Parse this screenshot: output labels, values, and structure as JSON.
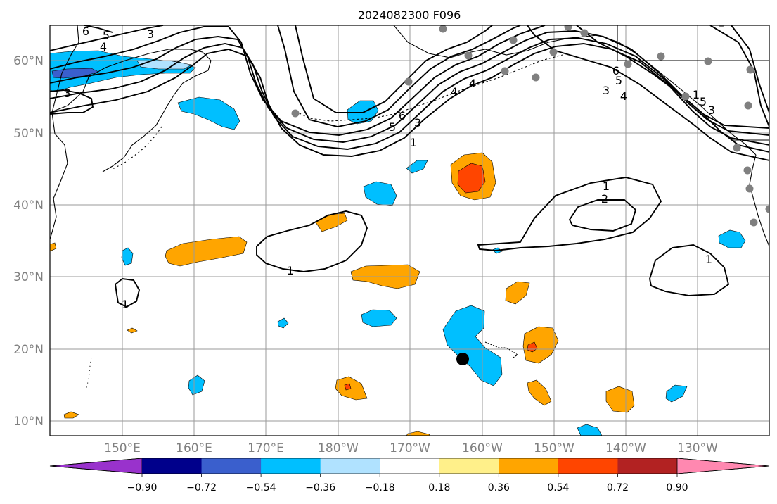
{
  "title": "2024082300 F096",
  "map": {
    "lon_ticks": [
      "150°E",
      "160°E",
      "170°E",
      "180°W",
      "170°W",
      "160°W",
      "150°W",
      "140°W",
      "130°W"
    ],
    "lat_ticks": [
      "10°N",
      "20°N",
      "30°N",
      "40°N",
      "50°N",
      "60°N"
    ],
    "contour_labels": [
      "6",
      "5",
      "4",
      "3",
      "3",
      "1",
      "6",
      "5",
      "4",
      "3",
      "1",
      "6",
      "5",
      "4",
      "3",
      "1",
      "2",
      "1",
      "1",
      "1",
      "4",
      "5",
      "3"
    ]
  },
  "colorbar": {
    "tick_labels": [
      "−0.90",
      "−0.72",
      "−0.54",
      "−0.36",
      "−0.18",
      "0.18",
      "0.36",
      "0.54",
      "0.72",
      "0.90"
    ],
    "colors": {
      "under": "#9932cc",
      "bins": [
        "#00008b",
        "#3a5fcd",
        "#00bfff",
        "#b0e2ff",
        "#ffffff",
        "#fff08a",
        "#ffa500",
        "#ff4500",
        "#b22222"
      ],
      "over": "#ff88b0"
    }
  }
}
